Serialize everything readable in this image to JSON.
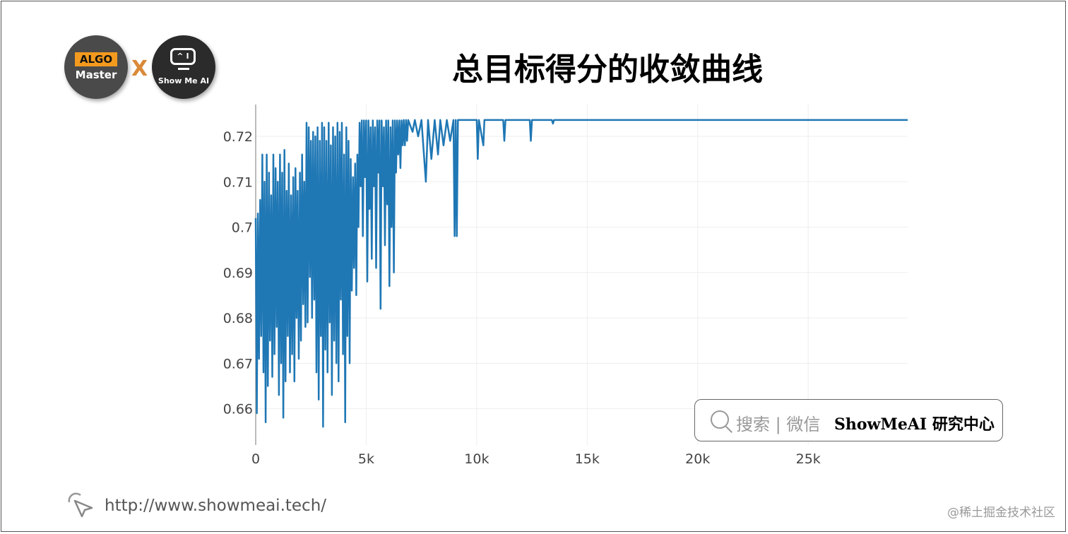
{
  "title": "总目标得分的收敛曲线",
  "logos": {
    "algo": "ALGO",
    "master": "Master",
    "cross": "X",
    "screen": "^ I",
    "showmeai": "Show Me AI"
  },
  "watermark": {
    "search_text": "搜索 | 微信",
    "brand": "ShowMeAI 研究中心",
    "icon": "search-icon"
  },
  "footer": {
    "url": "http://www.showmeai.tech/",
    "credit": "@稀土掘金技术社区",
    "icon": "cursor-click-icon"
  },
  "chart_data": {
    "type": "line",
    "title": "",
    "xlabel": "",
    "ylabel": "",
    "xlim": [
      0,
      29500
    ],
    "ylim": [
      0.652,
      0.727
    ],
    "grid": true,
    "line_color": "#1f77b4",
    "x_ticks": [
      {
        "value": 0,
        "label": "0"
      },
      {
        "value": 5000,
        "label": "5k"
      },
      {
        "value": 10000,
        "label": "10k"
      },
      {
        "value": 15000,
        "label": "15k"
      },
      {
        "value": 20000,
        "label": "20k"
      },
      {
        "value": 25000,
        "label": "25k"
      }
    ],
    "y_ticks": [
      {
        "value": 0.66,
        "label": "0.66"
      },
      {
        "value": 0.67,
        "label": "0.67"
      },
      {
        "value": 0.68,
        "label": "0.68"
      },
      {
        "value": 0.69,
        "label": "0.69"
      },
      {
        "value": 0.7,
        "label": "0.7"
      },
      {
        "value": 0.71,
        "label": "0.71"
      },
      {
        "value": 0.72,
        "label": "0.72"
      }
    ],
    "points": [
      [
        0,
        0.702
      ],
      [
        50,
        0.659
      ],
      [
        100,
        0.703
      ],
      [
        150,
        0.671
      ],
      [
        200,
        0.706
      ],
      [
        250,
        0.676
      ],
      [
        300,
        0.716
      ],
      [
        350,
        0.668
      ],
      [
        400,
        0.71
      ],
      [
        450,
        0.657
      ],
      [
        500,
        0.716
      ],
      [
        550,
        0.665
      ],
      [
        600,
        0.712
      ],
      [
        650,
        0.675
      ],
      [
        700,
        0.707
      ],
      [
        750,
        0.667
      ],
      [
        800,
        0.716
      ],
      [
        850,
        0.672
      ],
      [
        900,
        0.713
      ],
      [
        950,
        0.678
      ],
      [
        1000,
        0.71
      ],
      [
        1050,
        0.663
      ],
      [
        1100,
        0.716
      ],
      [
        1150,
        0.67
      ],
      [
        1200,
        0.712
      ],
      [
        1250,
        0.658
      ],
      [
        1300,
        0.717
      ],
      [
        1350,
        0.666
      ],
      [
        1400,
        0.708
      ],
      [
        1450,
        0.676
      ],
      [
        1500,
        0.714
      ],
      [
        1550,
        0.668
      ],
      [
        1600,
        0.707
      ],
      [
        1650,
        0.672
      ],
      [
        1700,
        0.711
      ],
      [
        1750,
        0.666
      ],
      [
        1800,
        0.713
      ],
      [
        1850,
        0.68
      ],
      [
        1900,
        0.708
      ],
      [
        1950,
        0.671
      ],
      [
        2000,
        0.712
      ],
      [
        2050,
        0.675
      ],
      [
        2100,
        0.716
      ],
      [
        2150,
        0.683
      ],
      [
        2200,
        0.71
      ],
      [
        2250,
        0.678
      ],
      [
        2300,
        0.723
      ],
      [
        2350,
        0.679
      ],
      [
        2400,
        0.722
      ],
      [
        2450,
        0.689
      ],
      [
        2500,
        0.719
      ],
      [
        2550,
        0.68
      ],
      [
        2600,
        0.721
      ],
      [
        2650,
        0.684
      ],
      [
        2700,
        0.72
      ],
      [
        2750,
        0.668
      ],
      [
        2800,
        0.722
      ],
      [
        2850,
        0.662
      ],
      [
        2900,
        0.719
      ],
      [
        2950,
        0.676
      ],
      [
        3000,
        0.723
      ],
      [
        3050,
        0.656
      ],
      [
        3100,
        0.722
      ],
      [
        3150,
        0.673
      ],
      [
        3200,
        0.719
      ],
      [
        3250,
        0.668
      ],
      [
        3300,
        0.723
      ],
      [
        3350,
        0.679
      ],
      [
        3400,
        0.718
      ],
      [
        3450,
        0.663
      ],
      [
        3500,
        0.722
      ],
      [
        3550,
        0.675
      ],
      [
        3600,
        0.72
      ],
      [
        3650,
        0.67
      ],
      [
        3700,
        0.723
      ],
      [
        3750,
        0.666
      ],
      [
        3800,
        0.721
      ],
      [
        3850,
        0.684
      ],
      [
        3900,
        0.723
      ],
      [
        3950,
        0.672
      ],
      [
        4000,
        0.716
      ],
      [
        4050,
        0.657
      ],
      [
        4100,
        0.722
      ],
      [
        4150,
        0.676
      ],
      [
        4200,
        0.719
      ],
      [
        4250,
        0.67
      ],
      [
        4300,
        0.715
      ],
      [
        4350,
        0.686
      ],
      [
        4400,
        0.711
      ],
      [
        4450,
        0.691
      ],
      [
        4500,
        0.714
      ],
      [
        4550,
        0.685
      ],
      [
        4600,
        0.716
      ],
      [
        4650,
        0.7
      ],
      [
        4700,
        0.723
      ],
      [
        4750,
        0.709
      ],
      [
        4800,
        0.7235
      ],
      [
        4850,
        0.698
      ],
      [
        4900,
        0.7235
      ],
      [
        4950,
        0.711
      ],
      [
        5000,
        0.7235
      ],
      [
        5050,
        0.688
      ],
      [
        5100,
        0.7235
      ],
      [
        5150,
        0.704
      ],
      [
        5200,
        0.722
      ],
      [
        5250,
        0.693
      ],
      [
        5300,
        0.7235
      ],
      [
        5350,
        0.709
      ],
      [
        5400,
        0.722
      ],
      [
        5450,
        0.691
      ],
      [
        5500,
        0.7235
      ],
      [
        5550,
        0.712
      ],
      [
        5600,
        0.7235
      ],
      [
        5650,
        0.682
      ],
      [
        5700,
        0.7235
      ],
      [
        5750,
        0.709
      ],
      [
        5800,
        0.722
      ],
      [
        5850,
        0.696
      ],
      [
        5900,
        0.7235
      ],
      [
        5950,
        0.705
      ],
      [
        6000,
        0.7235
      ],
      [
        6050,
        0.687
      ],
      [
        6100,
        0.722
      ],
      [
        6150,
        0.7
      ],
      [
        6200,
        0.7235
      ],
      [
        6250,
        0.69
      ],
      [
        6300,
        0.7235
      ],
      [
        6350,
        0.712
      ],
      [
        6400,
        0.7235
      ],
      [
        6450,
        0.716
      ],
      [
        6500,
        0.7235
      ],
      [
        6550,
        0.713
      ],
      [
        6600,
        0.7235
      ],
      [
        6650,
        0.718
      ],
      [
        6700,
        0.7236
      ],
      [
        6750,
        0.718
      ],
      [
        6800,
        0.7236
      ],
      [
        6850,
        0.719
      ],
      [
        6900,
        0.7236
      ],
      [
        7100,
        0.721
      ],
      [
        7200,
        0.7236
      ],
      [
        7350,
        0.72
      ],
      [
        7500,
        0.7236
      ],
      [
        7700,
        0.71
      ],
      [
        7800,
        0.7236
      ],
      [
        7950,
        0.715
      ],
      [
        8100,
        0.7236
      ],
      [
        8250,
        0.716
      ],
      [
        8350,
        0.7236
      ],
      [
        8500,
        0.718
      ],
      [
        8650,
        0.7236
      ],
      [
        8800,
        0.719
      ],
      [
        8950,
        0.7236
      ],
      [
        9000,
        0.698
      ],
      [
        9050,
        0.7236
      ],
      [
        9100,
        0.698
      ],
      [
        9150,
        0.7236
      ],
      [
        10000,
        0.7236
      ],
      [
        10050,
        0.715
      ],
      [
        10100,
        0.7236
      ],
      [
        10300,
        0.718
      ],
      [
        10350,
        0.7236
      ],
      [
        11200,
        0.7236
      ],
      [
        11250,
        0.719
      ],
      [
        11300,
        0.7236
      ],
      [
        12400,
        0.7236
      ],
      [
        12450,
        0.719
      ],
      [
        12500,
        0.7236
      ],
      [
        13400,
        0.7236
      ],
      [
        13450,
        0.7228
      ],
      [
        13500,
        0.7236
      ],
      [
        29500,
        0.7236
      ]
    ]
  }
}
